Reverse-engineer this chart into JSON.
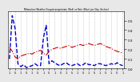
{
  "title": "Milwaukee Weather Evapotranspiration (Red) vs Rain (Blue) per Day (Inches)",
  "bg_color": "#e8e8e8",
  "plot_bg": "#ffffff",
  "red_color": "#cc0000",
  "blue_color": "#0000cc",
  "red_style": "-.",
  "blue_style": "--",
  "red_lw": 0.8,
  "blue_lw": 1.0,
  "ylim": [
    0,
    0.6
  ],
  "yticks": [
    0.0,
    0.1,
    0.2,
    0.3,
    0.4,
    0.5
  ],
  "rain_data": [
    0.1,
    0.55,
    0.42,
    0.05,
    0.02,
    0.04,
    0.01,
    0.02,
    0.03,
    0.05,
    0.03,
    0.03,
    0.32,
    0.45,
    0.05,
    0.08,
    0.06,
    0.04,
    0.03,
    0.05,
    0.06,
    0.04,
    0.03,
    0.04,
    0.05,
    0.03,
    0.04,
    0.06,
    0.04,
    0.04,
    0.03,
    0.05,
    0.05,
    0.04,
    0.03,
    0.04,
    0.05,
    0.04,
    0.06,
    0.04,
    0.03
  ],
  "et_data": [
    0.22,
    0.18,
    0.12,
    0.1,
    0.13,
    0.14,
    0.15,
    0.16,
    0.15,
    0.17,
    0.18,
    0.19,
    0.16,
    0.14,
    0.18,
    0.2,
    0.21,
    0.22,
    0.21,
    0.22,
    0.23,
    0.24,
    0.22,
    0.23,
    0.24,
    0.25,
    0.24,
    0.25,
    0.26,
    0.25,
    0.24,
    0.25,
    0.26,
    0.25,
    0.23,
    0.22,
    0.21,
    0.19,
    0.18,
    0.17,
    0.16
  ],
  "tick_positions": [
    0,
    2,
    4,
    6,
    8,
    10,
    12,
    14,
    16,
    18,
    20,
    22,
    24,
    26,
    28,
    30,
    32,
    34,
    36,
    38,
    40
  ],
  "tick_labels": [
    "1",
    "5",
    "1",
    "5",
    "1",
    "5",
    "1",
    "5",
    "1",
    "5",
    "1",
    "5",
    "1",
    "5",
    "1",
    "5",
    "1",
    "5",
    "1",
    "5",
    "1"
  ]
}
